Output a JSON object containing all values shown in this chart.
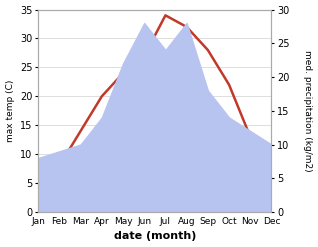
{
  "months": [
    "Jan",
    "Feb",
    "Mar",
    "Apr",
    "May",
    "Jun",
    "Jul",
    "Aug",
    "Sep",
    "Oct",
    "Nov",
    "Dec"
  ],
  "temperature": [
    4,
    8,
    14,
    20,
    24,
    27,
    34,
    32,
    28,
    22,
    13,
    4
  ],
  "precipitation": [
    8,
    9,
    10,
    14,
    22,
    28,
    24,
    28,
    18,
    14,
    12,
    10
  ],
  "temp_color": "#c0392b",
  "precip_fill_color": "#b8c4f0",
  "precip_edge_color": "#8898cc",
  "temp_ylim": [
    0,
    35
  ],
  "precip_ylim": [
    0,
    30
  ],
  "temp_yticks": [
    0,
    5,
    10,
    15,
    20,
    25,
    30,
    35
  ],
  "precip_yticks": [
    0,
    5,
    10,
    15,
    20,
    25,
    30
  ],
  "xlabel": "date (month)",
  "ylabel_left": "max temp (C)",
  "ylabel_right": "med. precipitation (kg/m2)",
  "bg_color": "#ffffff",
  "grid_color": "#d0d0d0"
}
